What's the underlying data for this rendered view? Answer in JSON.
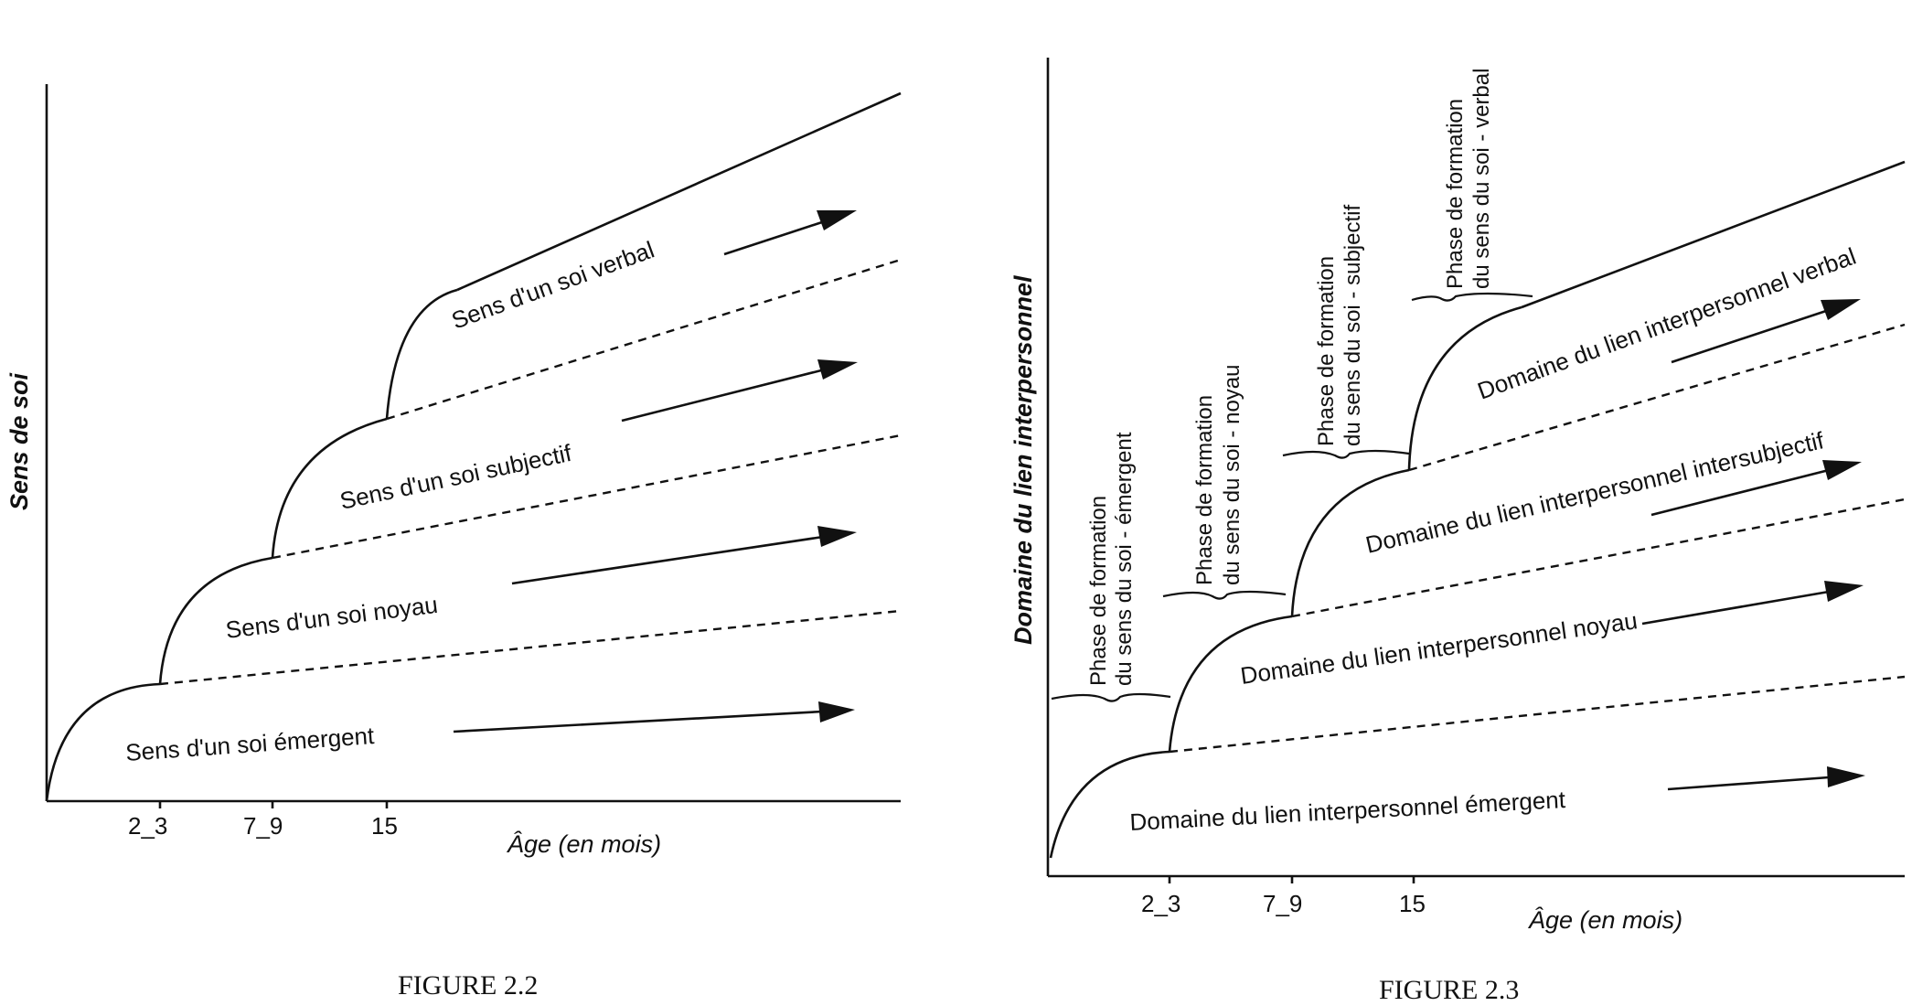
{
  "figures": [
    {
      "caption": "FIGURE 2.2",
      "y_axis_title": "Sens de soi",
      "x_axis_title": "Âge (en mois)",
      "ticks": [
        "2_3",
        "7_9",
        "15"
      ],
      "bands": [
        "Sens d'un soi émergent",
        "Sens d'un soi noyau",
        "Sens d'un soi subjectif",
        "Sens d'un soi verbal"
      ]
    },
    {
      "caption": "FIGURE 2.3",
      "y_axis_title": "Domaine du lien interpersonnel",
      "x_axis_title": "Âge (en mois)",
      "ticks": [
        "2_3",
        "7_9",
        "15"
      ],
      "bands": [
        "Domaine du lien interpersonnel émergent",
        "Domaine du lien interpersonnel noyau",
        "Domaine du lien interpersonnel intersubjectif",
        "Domaine du lien interpersonnel verbal"
      ],
      "phases": [
        [
          "Phase de formation",
          "du sens du soi - émergent"
        ],
        [
          "Phase de formation",
          "du sens du soi - noyau"
        ],
        [
          "Phase de formation",
          "du sens du soi - subjectif"
        ],
        [
          "Phase de formation",
          "du sens du soi - verbal"
        ]
      ]
    }
  ]
}
